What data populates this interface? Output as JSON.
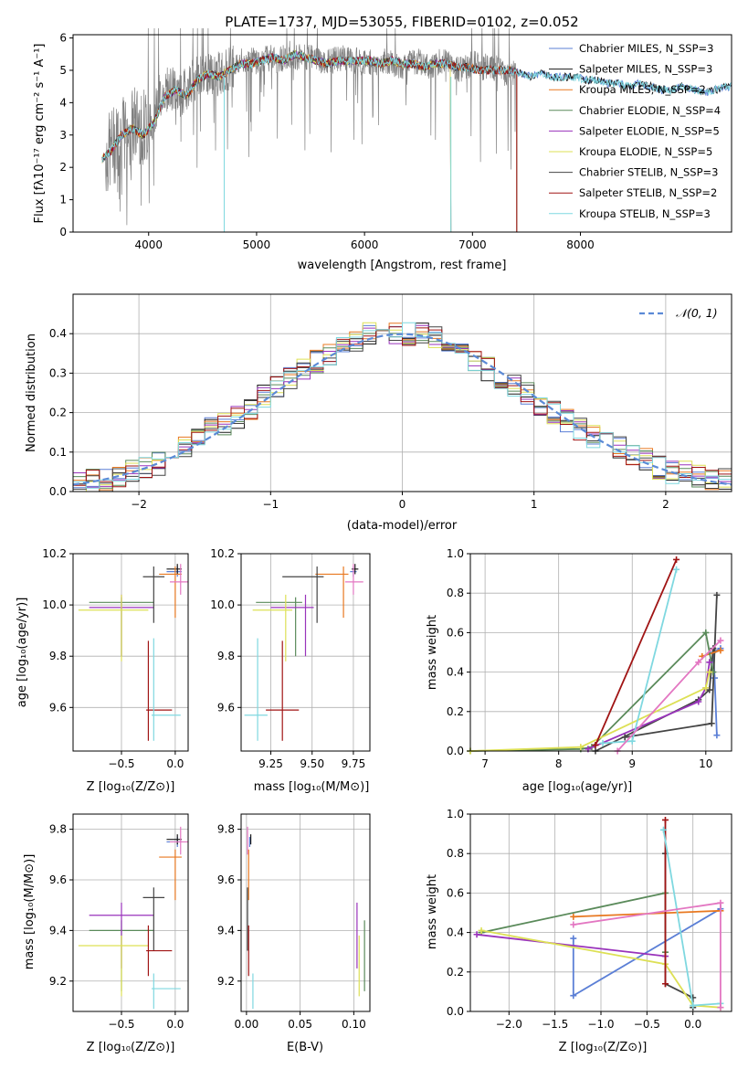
{
  "title": "PLATE=1737, MJD=53055, FIBERID=0102, z=0.052",
  "panels": {
    "spectrum": {
      "xlabel": "wavelength [Angstrom, rest frame]",
      "ylabel": "Flux [fλ10⁻¹⁷ erg cm⁻² s⁻¹ A⁻¹]",
      "xticks": [
        "4000",
        "5000",
        "6000",
        "7000",
        "8000"
      ],
      "yticks": [
        "0",
        "1",
        "2",
        "3",
        "4",
        "5",
        "6"
      ]
    },
    "residuals": {
      "xlabel": "(data-model)/error",
      "ylabel": "Normed distribution",
      "xticks": [
        "−2",
        "−1",
        "0",
        "1",
        "2"
      ],
      "yticks": [
        "0.0",
        "0.1",
        "0.2",
        "0.3",
        "0.4"
      ],
      "legend": "𝒩(0, 1)"
    },
    "age_Z": {
      "xlabel": "Z [log₁₀(Z/Z⊙)]",
      "ylabel": "age  [log₁₀(age/yr)]",
      "xticks": [
        "−0.5",
        "0.0"
      ],
      "yticks": [
        "9.6",
        "9.8",
        "10.0",
        "10.2"
      ]
    },
    "age_mass": {
      "xlabel": "mass [log₁₀(M/M⊙)]",
      "xticks": [
        "9.25",
        "9.50",
        "9.75"
      ],
      "yticks": [
        "9.6",
        "9.8",
        "10.0",
        "10.2"
      ]
    },
    "weight_age": {
      "xlabel": "age  [log₁₀(age/yr)]",
      "ylabel": "mass weight",
      "xticks": [
        "7",
        "8",
        "9",
        "10"
      ],
      "yticks": [
        "0.0",
        "0.2",
        "0.4",
        "0.6",
        "0.8",
        "1.0"
      ]
    },
    "mass_Z": {
      "xlabel": "Z [log₁₀(Z/Z⊙)]",
      "ylabel": "mass [log₁₀(M/M⊙)]",
      "xticks": [
        "−0.5",
        "0.0"
      ],
      "yticks": [
        "9.2",
        "9.4",
        "9.6",
        "9.8"
      ]
    },
    "mass_ebv": {
      "xlabel": "E(B-V)",
      "xticks": [
        "0.00",
        "0.05",
        "0.10"
      ],
      "yticks": [
        "9.2",
        "9.4",
        "9.6",
        "9.8"
      ]
    },
    "weight_Z": {
      "xlabel": "Z [log₁₀(Z/Z⊙)]",
      "ylabel": "mass weight",
      "xticks": [
        "−2.0",
        "−1.5",
        "−1.0",
        "−0.5",
        "0.0"
      ],
      "yticks": [
        "0.0",
        "0.2",
        "0.4",
        "0.6",
        "0.8",
        "1.0"
      ]
    }
  },
  "chart_data": [
    {
      "type": "line",
      "title": "PLATE=1737, MJD=53055, FIBERID=0102, z=0.052",
      "xlabel": "wavelength [Angstrom, rest frame]",
      "ylabel": "Flux [fλ10⁻¹⁷ erg cm⁻² s⁻¹ A⁻¹]",
      "xlim": [
        3300,
        9400
      ],
      "ylim": [
        0,
        6.1
      ],
      "legend_position": "top-right",
      "observed_spectrum": {
        "color": "#808080",
        "x": [
          3600,
          3700,
          3800,
          3900,
          4000,
          4100,
          4200,
          4300,
          4400,
          4500,
          4600,
          4700,
          4800,
          4900,
          5000,
          5100,
          5200,
          5300,
          5400,
          5500,
          5600,
          5700,
          5800,
          5900,
          6000,
          6100,
          6200,
          6300,
          6400,
          6500,
          6600,
          6700,
          6800,
          6900,
          7000,
          7100,
          7200,
          7300,
          7400
        ],
        "y": [
          2.3,
          2.8,
          3.1,
          3.4,
          3.2,
          4.2,
          4.5,
          4.2,
          4.7,
          4.9,
          4.8,
          5.0,
          5.2,
          5.3,
          5.3,
          5.4,
          5.3,
          5.5,
          5.4,
          5.4,
          5.2,
          5.3,
          5.4,
          5.3,
          5.3,
          5.2,
          5.3,
          5.1,
          5.2,
          5.3,
          5.1,
          5.3,
          5.2,
          5.0,
          5.2,
          5.1,
          5.1,
          4.9,
          4.9
        ]
      },
      "series": [
        {
          "name": "Chabrier MILES, N_SSP=3",
          "color": "#5b7fd6",
          "end": 9400
        },
        {
          "name": "Salpeter MILES, N_SSP=3",
          "color": "#1a1a1a",
          "end": 9400
        },
        {
          "name": "Kroupa MILES, N_SSP=2",
          "color": "#e87820",
          "end": 7410
        },
        {
          "name": "Chabrier ELODIE, N_SSP=4",
          "color": "#5a8a5a",
          "end": 6800
        },
        {
          "name": "Salpeter ELODIE, N_SSP=5",
          "color": "#9933bb",
          "end": 6800
        },
        {
          "name": "Kroupa ELODIE, N_SSP=5",
          "color": "#dde055",
          "end": 6800
        },
        {
          "name": "Chabrier STELIB, N_SSP=3",
          "color": "#444444",
          "end": 7410
        },
        {
          "name": "Salpeter STELIB, N_SSP=2",
          "color": "#a01414",
          "end": 7410
        },
        {
          "name": "Kroupa STELIB, N_SSP=3",
          "color": "#7fd8e0",
          "end": 9400
        }
      ],
      "model_shape": {
        "x": [
          3550,
          3650,
          3750,
          3850,
          3950,
          4050,
          4150,
          4250,
          4350,
          4450,
          4550,
          4650,
          4750,
          4850,
          4950,
          5050,
          5150,
          5250,
          5350,
          5450,
          5550,
          5650,
          5750,
          5850,
          5950,
          6050,
          6150,
          6250,
          6350,
          6450,
          6550,
          6650,
          6750,
          6850,
          6950,
          7050,
          7150,
          7250,
          7350,
          7450,
          7550,
          7650,
          7750,
          7850,
          7950,
          8050,
          8150,
          8250,
          8350,
          8450,
          8550,
          8650,
          8750,
          8850,
          8950,
          9050,
          9150,
          9250,
          9350
        ],
        "y": [
          2.2,
          2.5,
          3.0,
          3.2,
          3.0,
          3.4,
          4.2,
          4.4,
          4.2,
          4.7,
          4.9,
          4.8,
          5.0,
          5.2,
          5.2,
          5.3,
          5.4,
          5.3,
          5.5,
          5.4,
          5.3,
          5.2,
          5.3,
          5.3,
          5.3,
          5.3,
          5.2,
          5.3,
          5.2,
          5.2,
          5.1,
          5.2,
          5.2,
          5.1,
          5.1,
          5.0,
          5.0,
          5.0,
          5.0,
          4.9,
          4.8,
          4.9,
          4.8,
          4.8,
          4.8,
          4.7,
          4.7,
          4.6,
          4.6,
          4.5,
          4.6,
          4.5,
          4.4,
          4.4,
          4.5,
          4.4,
          4.3,
          4.4,
          4.5
        ]
      }
    },
    {
      "type": "step",
      "xlabel": "(data-model)/error",
      "ylabel": "Normed distribution",
      "xlim": [
        -2.5,
        2.5
      ],
      "ylim": [
        0,
        0.5
      ],
      "bin_width": 0.1,
      "legend_position": "top-right",
      "reference_curve": {
        "name": "𝒩(0, 1)",
        "color": "#5b8ad6",
        "mean": 0,
        "sigma": 1
      },
      "histogram_envelope": {
        "x": [
          -2.45,
          -2.35,
          -2.25,
          -2.15,
          -2.05,
          -1.95,
          -1.85,
          -1.75,
          -1.65,
          -1.55,
          -1.45,
          -1.35,
          -1.25,
          -1.15,
          -1.05,
          -0.95,
          -0.85,
          -0.75,
          -0.65,
          -0.55,
          -0.45,
          -0.35,
          -0.25,
          -0.15,
          -0.05,
          0.05,
          0.15,
          0.25,
          0.35,
          0.45,
          0.55,
          0.65,
          0.75,
          0.85,
          0.95,
          1.05,
          1.15,
          1.25,
          1.35,
          1.45,
          1.55,
          1.65,
          1.75,
          1.85,
          1.95,
          2.05,
          2.15,
          2.25,
          2.35,
          2.45
        ],
        "y": [
          0.02,
          0.03,
          0.03,
          0.04,
          0.05,
          0.06,
          0.07,
          0.09,
          0.11,
          0.13,
          0.16,
          0.17,
          0.19,
          0.21,
          0.24,
          0.27,
          0.29,
          0.31,
          0.33,
          0.35,
          0.37,
          0.38,
          0.4,
          0.4,
          0.4,
          0.4,
          0.4,
          0.39,
          0.38,
          0.36,
          0.33,
          0.31,
          0.29,
          0.27,
          0.25,
          0.22,
          0.2,
          0.18,
          0.16,
          0.14,
          0.12,
          0.11,
          0.09,
          0.08,
          0.06,
          0.05,
          0.05,
          0.04,
          0.03,
          0.03
        ]
      },
      "series": [
        "Chabrier MILES",
        "Salpeter MILES",
        "Kroupa MILES",
        "Chabrier ELODIE",
        "Salpeter ELODIE",
        "Kroupa ELODIE",
        "Chabrier STELIB",
        "Salpeter STELIB",
        "Kroupa STELIB"
      ]
    },
    {
      "type": "scatter",
      "subtitle": "errorbars",
      "panels": [
        "age_Z",
        "age_mass",
        "mass_Z",
        "mass_ebv"
      ],
      "xlim": {
        "age_Z": [
          -0.95,
          0.12
        ],
        "age_mass": [
          9.07,
          9.85
        ],
        "mass_Z": [
          -0.95,
          0.12
        ],
        "mass_ebv": [
          -0.005,
          0.115
        ]
      },
      "ylim": {
        "age_Z": [
          9.43,
          10.2
        ],
        "age_mass": [
          9.43,
          10.2
        ],
        "mass_Z": [
          9.08,
          9.86
        ],
        "mass_ebv": [
          9.08,
          9.86
        ]
      },
      "points": [
        {
          "model": "Chabrier MILES",
          "color": "#5b7fd6",
          "Z": 0.02,
          "Z_err": [
            0.1,
            0.04
          ],
          "age": 10.13,
          "age_err": [
            0.02,
            0.02
          ],
          "mass": 9.75,
          "mass_err": [
            0.02,
            0.02
          ],
          "ebv": 0.003
        },
        {
          "model": "Salpeter MILES",
          "color": "#1a1a1a",
          "Z": 0.02,
          "Z_err": [
            0.1,
            0.04
          ],
          "age": 10.14,
          "age_err": [
            0.02,
            0.02
          ],
          "mass": 9.76,
          "mass_err": [
            0.02,
            0.02
          ],
          "ebv": 0.004
        },
        {
          "model": "Kroupa MILES",
          "color": "#e87820",
          "Z": 0.0,
          "Z_err": [
            0.15,
            0.06
          ],
          "age": 10.12,
          "age_err": [
            0.17,
            0.03
          ],
          "mass": 9.69,
          "mass_err": [
            0.17,
            0.03
          ],
          "ebv": 0.002
        },
        {
          "model": "Chabrier ELODIE",
          "color": "#5a8a5a",
          "Z": -0.5,
          "Z_err": [
            0.3,
            0.3
          ],
          "age": 10.01,
          "age_err": [
            0.21,
            0.02
          ],
          "mass": 9.4,
          "mass_err": [
            0.24,
            0.04
          ],
          "ebv": 0.11
        },
        {
          "model": "Salpeter ELODIE",
          "color": "#9933bb",
          "Z": -0.5,
          "Z_err": [
            0.3,
            0.3
          ],
          "age": 9.99,
          "age_err": [
            0.19,
            0.05
          ],
          "mass": 9.46,
          "mass_err": [
            0.21,
            0.05
          ],
          "ebv": 0.103
        },
        {
          "model": "Kroupa ELODIE",
          "color": "#dde055",
          "Z": -0.5,
          "Z_err": [
            0.4,
            0.25
          ],
          "age": 9.98,
          "age_err": [
            0.2,
            0.06
          ],
          "mass": 9.34,
          "mass_err": [
            0.2,
            0.04
          ],
          "ebv": 0.105
        },
        {
          "model": "Chabrier STELIB",
          "color": "#444444",
          "Z": -0.2,
          "Z_err": [
            0.1,
            0.1
          ],
          "age": 10.11,
          "age_err": [
            0.18,
            0.04
          ],
          "mass": 9.53,
          "mass_err": [
            0.21,
            0.04
          ],
          "ebv": 0.001
        },
        {
          "model": "Salpeter STELIB",
          "color": "#a01414",
          "Z": -0.25,
          "Z_err": [
            0.02,
            0.22
          ],
          "age": 9.59,
          "age_err": [
            0.12,
            0.27
          ],
          "mass": 9.32,
          "mass_err": [
            0.1,
            0.1
          ],
          "ebv": 0.002
        },
        {
          "model": "Kroupa STELIB",
          "color": "#7fd8e0",
          "Z": -0.2,
          "Z_err": [
            0.02,
            0.25
          ],
          "age": 9.57,
          "age_err": [
            0.1,
            0.3
          ],
          "mass": 9.17,
          "mass_err": [
            0.08,
            0.06
          ],
          "ebv": 0.006
        },
        {
          "model": "Pink",
          "color": "#e377c2",
          "Z": 0.05,
          "Z_err": [
            0.1,
            0.07
          ],
          "age": 10.09,
          "age_err": [
            0.05,
            0.07
          ],
          "mass": 9.75,
          "mass_err": [
            0.05,
            0.06
          ],
          "ebv": 0.001
        }
      ]
    },
    {
      "type": "line",
      "panel": "weight_age",
      "xlabel": "age  [log₁₀(age/yr)]",
      "ylabel": "mass weight",
      "xlim": [
        6.8,
        10.35
      ],
      "ylim": [
        0,
        1.0
      ],
      "series": [
        {
          "color": "#5b7fd6",
          "x": [
            10.15,
            10.12,
            10.1,
            10.2
          ],
          "y": [
            0.08,
            0.37,
            0.5,
            0.52
          ]
        },
        {
          "color": "#444444",
          "x": [
            8.9,
            10.08,
            10.15
          ],
          "y": [
            0.07,
            0.14,
            0.79
          ]
        },
        {
          "color": "#444444",
          "x": [
            8.5,
            9.9,
            10.05,
            10.1
          ],
          "y": [
            0.0,
            0.26,
            0.31,
            0.52
          ]
        },
        {
          "color": "#e87820",
          "x": [
            9.95,
            10.2
          ],
          "y": [
            0.48,
            0.51
          ]
        },
        {
          "color": "#5a8a5a",
          "x": [
            6.8,
            8.3,
            8.45,
            10.0,
            10.1
          ],
          "y": [
            0.0,
            0.01,
            0.02,
            0.6,
            0.4
          ]
        },
        {
          "color": "#9933bb",
          "x": [
            8.4,
            9.9,
            10.0,
            10.05
          ],
          "y": [
            0.01,
            0.25,
            0.32,
            0.45
          ]
        },
        {
          "color": "#dde055",
          "x": [
            6.8,
            8.3,
            10.0,
            10.05
          ],
          "y": [
            0.0,
            0.02,
            0.32,
            0.4
          ]
        },
        {
          "color": "#a01414",
          "x": [
            8.5,
            9.6
          ],
          "y": [
            0.03,
            0.97
          ]
        },
        {
          "color": "#7fd8e0",
          "x": [
            8.6,
            9.0,
            9.6
          ],
          "y": [
            0.04,
            0.05,
            0.92
          ]
        },
        {
          "color": "#e377c2",
          "x": [
            8.8,
            9.9,
            10.2
          ],
          "y": [
            0.0,
            0.45,
            0.56
          ]
        }
      ]
    },
    {
      "type": "line",
      "panel": "weight_Z",
      "xlabel": "Z [log₁₀(Z/Z⊙)]",
      "ylabel": "mass weight",
      "xlim": [
        -2.42,
        0.42
      ],
      "ylim": [
        0,
        1.0
      ],
      "series": [
        {
          "color": "#5b7fd6",
          "x": [
            -1.3,
            -1.3,
            0.3
          ],
          "y": [
            0.37,
            0.08,
            0.52
          ]
        },
        {
          "color": "#444444",
          "x": [
            -0.3,
            -0.3,
            0.0,
            0.0
          ],
          "y": [
            0.8,
            0.14,
            0.07,
            0.02
          ]
        },
        {
          "color": "#e87820",
          "x": [
            -1.3,
            0.3
          ],
          "y": [
            0.48,
            0.51
          ]
        },
        {
          "color": "#5a8a5a",
          "x": [
            -2.3,
            -0.3,
            -0.3
          ],
          "y": [
            0.4,
            0.6,
            0.3
          ]
        },
        {
          "color": "#9933bb",
          "x": [
            -2.35,
            -0.3
          ],
          "y": [
            0.39,
            0.28
          ]
        },
        {
          "color": "#dde055",
          "x": [
            -2.3,
            -0.3,
            0.0,
            0.3
          ],
          "y": [
            0.41,
            0.24,
            0.03,
            0.02
          ]
        },
        {
          "color": "#a01414",
          "x": [
            -0.3,
            -0.3
          ],
          "y": [
            0.97,
            0.14
          ]
        },
        {
          "color": "#7fd8e0",
          "x": [
            -0.32,
            0.0,
            0.3
          ],
          "y": [
            0.92,
            0.03,
            0.04
          ]
        },
        {
          "color": "#e377c2",
          "x": [
            -1.3,
            0.3,
            0.3
          ],
          "y": [
            0.44,
            0.55,
            0.02
          ]
        }
      ]
    }
  ]
}
